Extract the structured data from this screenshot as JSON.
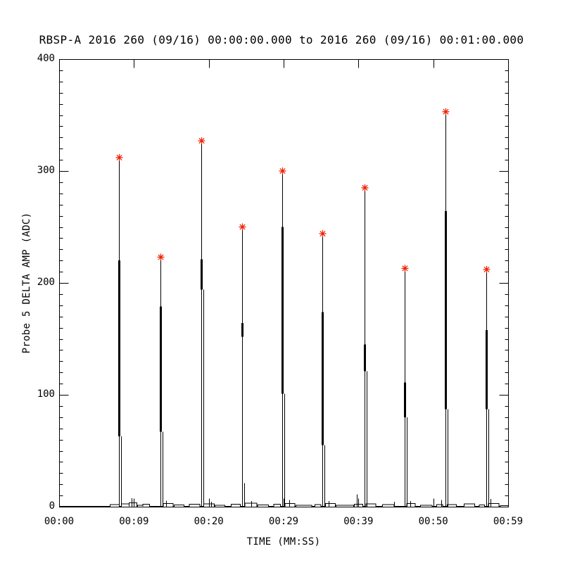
{
  "chart_data": {
    "type": "line",
    "title": "RBSP-A 2016 260 (09/16) 00:00:00.000 to 2016 260 (09/16) 00:01:00.000",
    "xlabel": "TIME (MM:SS)",
    "ylabel": "Probe 5 DELTA AMP (ADC)",
    "xlim_seconds": [
      0,
      59
    ],
    "ylim": [
      0,
      400
    ],
    "grid": false,
    "legend_position": "none",
    "background_color": "#ffffff",
    "line_color": "#000000",
    "marker": "asterisk",
    "marker_color": "#ee2200",
    "x_tick_seconds": [
      0,
      9.833,
      19.667,
      29.5,
      39.333,
      49.167,
      59
    ],
    "x_tick_labels": [
      "00:00",
      "00:09",
      "00:20",
      "00:29",
      "00:39",
      "00:50",
      "00:59"
    ],
    "y_major_ticks": [
      0,
      100,
      200,
      300,
      400
    ],
    "y_tick_labels": [
      "0",
      "100",
      "200",
      "300",
      "400"
    ],
    "y_minor_interval": 10,
    "spikes": [
      {
        "t": 7.9,
        "peak": 312,
        "bold_top": 220,
        "bold_bottom": 63,
        "echo_top": 63
      },
      {
        "t": 13.3,
        "peak": 223,
        "bold_top": 179,
        "bold_bottom": 67,
        "echo_top": 67
      },
      {
        "t": 18.7,
        "peak": 327,
        "bold_top": 221,
        "bold_bottom": 194,
        "echo_top": 194
      },
      {
        "t": 24.0,
        "peak": 250,
        "bold_top": 164,
        "bold_bottom": 152,
        "echo_top": 21
      },
      {
        "t": 29.3,
        "peak": 300,
        "bold_top": 250,
        "bold_bottom": 101,
        "echo_top": 101
      },
      {
        "t": 34.6,
        "peak": 244,
        "bold_top": 174,
        "bold_bottom": 55,
        "echo_top": 55
      },
      {
        "t": 40.1,
        "peak": 285,
        "bold_top": 145,
        "bold_bottom": 121,
        "echo_top": 121
      },
      {
        "t": 45.4,
        "peak": 213,
        "bold_top": 111,
        "bold_bottom": 80,
        "echo_top": 80
      },
      {
        "t": 50.8,
        "peak": 353,
        "bold_top": 264,
        "bold_bottom": 87,
        "echo_top": 87
      },
      {
        "t": 56.1,
        "peak": 212,
        "bold_top": 158,
        "bold_bottom": 87,
        "echo_top": 87
      }
    ],
    "noise_steps": [
      [
        0.0,
        6.7,
        0.4
      ],
      [
        6.7,
        7.9,
        1.8
      ],
      [
        8.2,
        9.2,
        2.5
      ],
      [
        9.2,
        10.2,
        3.5
      ],
      [
        10.3,
        11.0,
        1.2
      ],
      [
        11.0,
        11.9,
        2.2
      ],
      [
        13.7,
        15.0,
        2.8
      ],
      [
        15.1,
        16.4,
        1.5
      ],
      [
        17.1,
        18.5,
        2.2
      ],
      [
        19.0,
        20.4,
        2.6
      ],
      [
        20.5,
        21.8,
        1.4
      ],
      [
        22.6,
        23.8,
        2.2
      ],
      [
        24.4,
        26.0,
        3.2
      ],
      [
        26.1,
        27.5,
        1.6
      ],
      [
        28.2,
        29.1,
        2.2
      ],
      [
        29.7,
        31.0,
        2.8
      ],
      [
        31.1,
        33.2,
        1.2
      ],
      [
        33.6,
        34.4,
        2.0
      ],
      [
        35.0,
        36.3,
        2.8
      ],
      [
        36.4,
        38.7,
        1.4
      ],
      [
        38.8,
        39.9,
        2.2
      ],
      [
        40.3,
        41.6,
        2.4
      ],
      [
        42.5,
        44.0,
        1.8
      ],
      [
        45.7,
        46.8,
        2.8
      ],
      [
        47.5,
        49.0,
        1.4
      ],
      [
        49.6,
        50.4,
        2.0
      ],
      [
        51.0,
        52.2,
        1.8
      ],
      [
        53.2,
        54.6,
        2.4
      ],
      [
        55.2,
        55.9,
        1.6
      ],
      [
        56.4,
        57.8,
        2.8
      ],
      [
        58.0,
        59.0,
        0.9
      ]
    ],
    "noise_spikes": [
      {
        "t": 9.5,
        "v": 7.5
      },
      {
        "t": 14.1,
        "v": 5.5
      },
      {
        "t": 20.0,
        "v": 4.5
      },
      {
        "t": 25.2,
        "v": 5.0
      },
      {
        "t": 30.2,
        "v": 6.0
      },
      {
        "t": 35.4,
        "v": 5.0
      },
      {
        "t": 39.1,
        "v": 11.0
      },
      {
        "t": 44.0,
        "v": 4.5
      },
      {
        "t": 46.1,
        "v": 5.0
      },
      {
        "t": 50.2,
        "v": 6.0
      },
      {
        "t": 56.7,
        "v": 7.0
      }
    ]
  }
}
